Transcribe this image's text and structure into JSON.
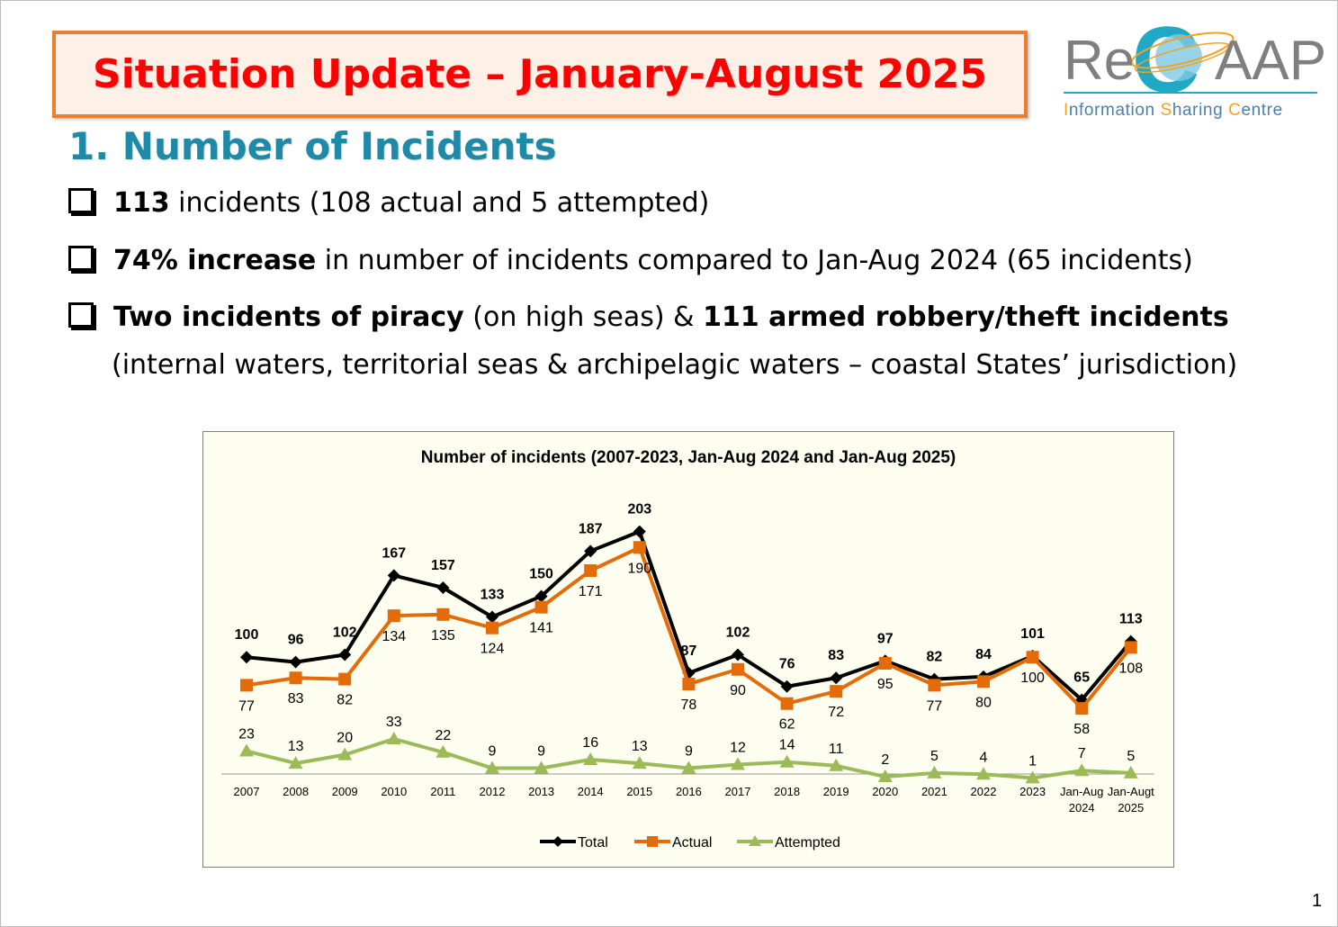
{
  "slide": {
    "title": "Situation Update – January-August 2025",
    "logo": {
      "re": "Re",
      "c": "C",
      "aap": "AAP",
      "tagline_parts": [
        "I",
        "nformation ",
        "S",
        "haring ",
        "C",
        "entre"
      ]
    },
    "heading": "1. Number of Incidents",
    "bullets": [
      {
        "bold": "113",
        "rest": " incidents (108 actual and 5 attempted)"
      },
      {
        "bold": "74% increase",
        "rest": " in number of incidents compared to Jan-Aug 2024 (65 incidents)"
      },
      {
        "bold": "Two incidents of piracy",
        "mid": " (on high seas) & ",
        "bold2": "111 armed robbery/theft incidents",
        "cont": "(internal waters, territorial seas & archipelagic waters – coastal States’ jurisdiction)"
      }
    ],
    "page_number": "1"
  },
  "colors": {
    "title_red": "#ff0000",
    "title_border": "#ed7d31",
    "heading_teal": "#1f8aa8",
    "total": "#000000",
    "actual": "#e36c09",
    "attempted": "#9bbb59"
  },
  "chart_data": {
    "type": "line",
    "title": "Number of incidents (2007-2023,  Jan-Aug 2024 and Jan-Aug 2025)",
    "categories": [
      "2007",
      "2008",
      "2009",
      "2010",
      "2011",
      "2012",
      "2013",
      "2014",
      "2015",
      "2016",
      "2017",
      "2018",
      "2019",
      "2020",
      "2021",
      "2022",
      "2023",
      "Jan-Aug 2024",
      "Jan-Augt 2025"
    ],
    "category_lines": [
      [
        "2007"
      ],
      [
        "2008"
      ],
      [
        "2009"
      ],
      [
        "2010"
      ],
      [
        "2011"
      ],
      [
        "2012"
      ],
      [
        "2013"
      ],
      [
        "2014"
      ],
      [
        "2015"
      ],
      [
        "2016"
      ],
      [
        "2017"
      ],
      [
        "2018"
      ],
      [
        "2019"
      ],
      [
        "2020"
      ],
      [
        "2021"
      ],
      [
        "2022"
      ],
      [
        "2023"
      ],
      [
        "Jan-Aug",
        "2024"
      ],
      [
        "Jan-Augt",
        "2025"
      ]
    ],
    "series": [
      {
        "name": "Total",
        "color": "#000000",
        "marker": "diamond",
        "values": [
          100,
          96,
          102,
          167,
          157,
          133,
          150,
          187,
          203,
          87,
          102,
          76,
          83,
          97,
          82,
          84,
          101,
          65,
          113
        ]
      },
      {
        "name": "Actual",
        "color": "#e36c09",
        "marker": "square",
        "values": [
          77,
          83,
          82,
          134,
          135,
          124,
          141,
          171,
          190,
          78,
          90,
          62,
          72,
          95,
          77,
          80,
          100,
          58,
          108
        ]
      },
      {
        "name": "Attempted",
        "color": "#9bbb59",
        "marker": "triangle",
        "values": [
          23,
          13,
          20,
          33,
          22,
          9,
          9,
          16,
          13,
          9,
          12,
          14,
          11,
          2,
          5,
          4,
          1,
          7,
          5
        ]
      }
    ],
    "ylim": [
      0,
      210
    ],
    "grid": false,
    "legend": "bottom"
  }
}
